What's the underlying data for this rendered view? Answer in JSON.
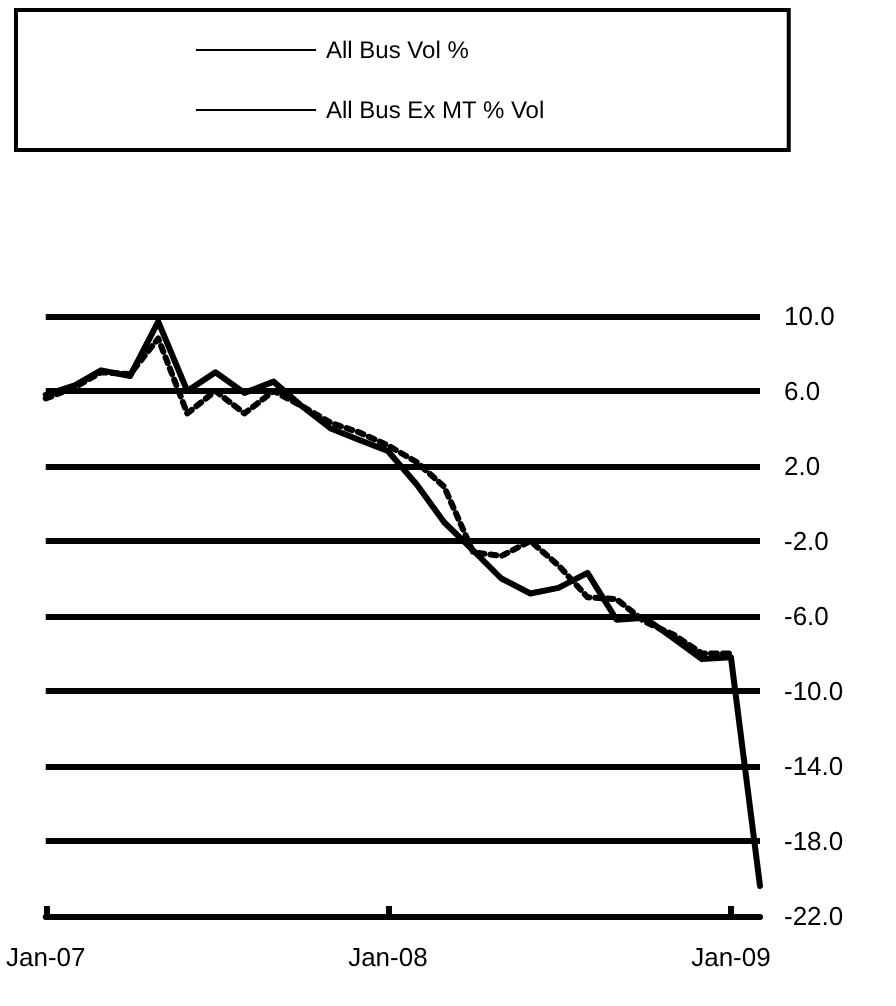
{
  "chart_data": {
    "type": "line",
    "x": [
      "2007-01",
      "2007-02",
      "2007-03",
      "2007-04",
      "2007-05",
      "2007-06",
      "2007-07",
      "2007-08",
      "2007-09",
      "2007-10",
      "2007-11",
      "2007-12",
      "2008-01",
      "2008-02",
      "2008-03",
      "2008-04",
      "2008-05",
      "2008-06",
      "2008-07",
      "2008-08",
      "2008-09",
      "2008-10",
      "2008-11",
      "2008-12",
      "2009-01",
      "2009-02"
    ],
    "series": [
      {
        "name": "All Bus Vol %",
        "color": "#000000",
        "line_style": "solid",
        "values": [
          5.8,
          6.3,
          7.1,
          6.8,
          9.7,
          6.0,
          7.0,
          5.9,
          6.5,
          5.2,
          4.0,
          3.4,
          2.8,
          1.0,
          -1.0,
          -2.5,
          -4.0,
          -4.8,
          -4.5,
          -3.7,
          -6.2,
          -6.1,
          -7.2,
          -8.3,
          -8.2,
          -20.4
        ]
      },
      {
        "name": "All Bus Ex MT % Vol",
        "color": "#000000",
        "line_style": "dotted",
        "values": [
          5.6,
          6.2,
          7.0,
          6.9,
          8.8,
          4.8,
          6.0,
          4.8,
          6.0,
          5.2,
          4.3,
          3.8,
          3.1,
          2.2,
          0.9,
          -2.6,
          -2.8,
          -2.0,
          -3.3,
          -5.0,
          -5.1,
          -6.3,
          -7.0,
          -8.0,
          -8.0,
          null
        ]
      }
    ],
    "xlim": [
      "2007-01",
      "2009-02"
    ],
    "xticks": [
      {
        "value": "2007-01",
        "label": "Jan-07"
      },
      {
        "value": "2008-01",
        "label": "Jan-08"
      },
      {
        "value": "2009-01",
        "label": "Jan-09"
      }
    ],
    "ylim": [
      -22,
      10
    ],
    "yticks": [
      {
        "value": -22,
        "label": "-22.0"
      },
      {
        "value": -18,
        "label": "-18.0"
      },
      {
        "value": -14,
        "label": "-14.0"
      },
      {
        "value": -10,
        "label": "-10.0"
      },
      {
        "value": -6,
        "label": "-6.0"
      },
      {
        "value": -2,
        "label": "-2.0"
      },
      {
        "value": 2,
        "label": "2.0"
      },
      {
        "value": 6,
        "label": "6.0"
      },
      {
        "value": 10,
        "label": "10.0"
      }
    ],
    "grid": "y",
    "legend": "top",
    "marker": "none"
  }
}
